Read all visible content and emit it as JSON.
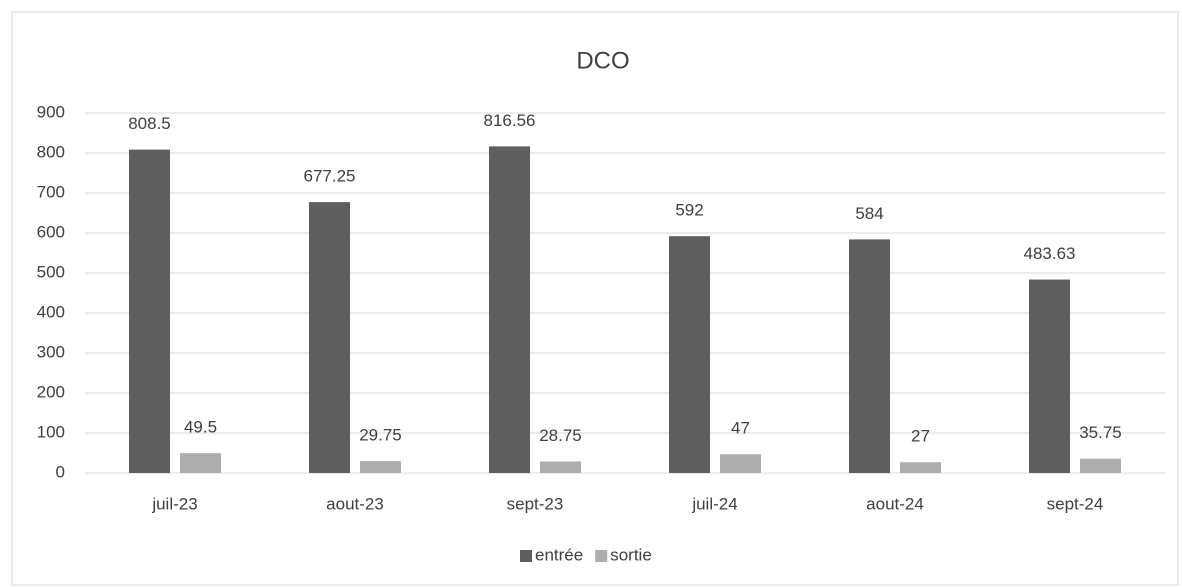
{
  "chart_data": {
    "type": "bar",
    "title": "DCO",
    "categories": [
      "juil-23",
      "aout-23",
      "sept-23",
      "juil-24",
      "aout-24",
      "sept-24"
    ],
    "series": [
      {
        "name": "entrée",
        "color": "#5f5f5f",
        "values": [
          808.5,
          677.25,
          816.56,
          592,
          584,
          483.63
        ]
      },
      {
        "name": "sortie",
        "color": "#adadad",
        "values": [
          49.5,
          29.75,
          28.75,
          47,
          27,
          35.75
        ]
      }
    ],
    "ylim": [
      0,
      900
    ],
    "yticks": [
      0,
      100,
      200,
      300,
      400,
      500,
      600,
      700,
      800,
      900
    ],
    "grid": true,
    "legend": "bottom"
  }
}
